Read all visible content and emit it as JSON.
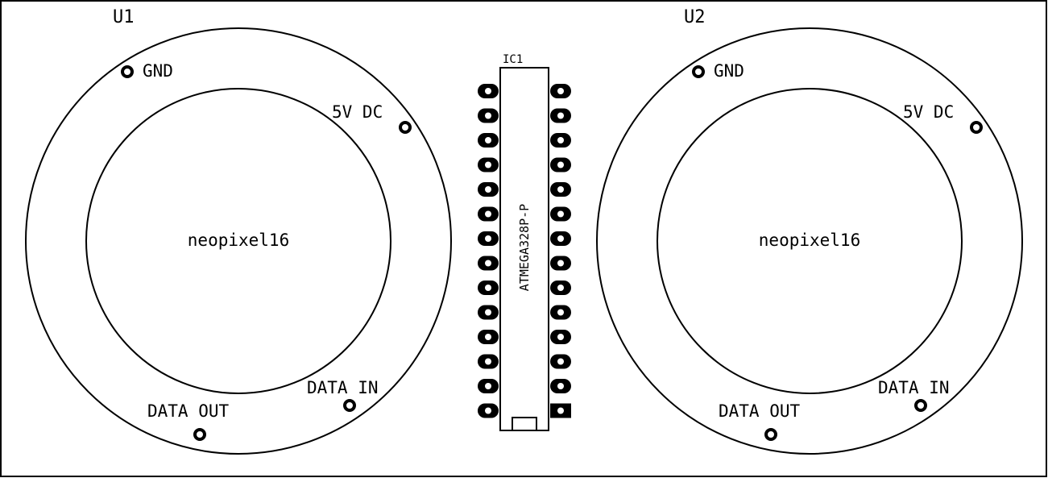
{
  "modules": [
    {
      "ref": "U1",
      "value": "neopixel16",
      "pads": {
        "gnd": "GND",
        "vcc": "5V DC",
        "data_in": "DATA IN",
        "data_out": "DATA OUT"
      }
    },
    {
      "ref": "U2",
      "value": "neopixel16",
      "pads": {
        "gnd": "GND",
        "vcc": "5V DC",
        "data_in": "DATA IN",
        "data_out": "DATA OUT"
      }
    }
  ],
  "ic": {
    "ref": "IC1",
    "value": "ATMEGA328P-P",
    "pins_per_side": 14,
    "square_pad": "pin 1"
  },
  "colors": {
    "background": "#ffffff",
    "silkscreen": "#000000"
  }
}
